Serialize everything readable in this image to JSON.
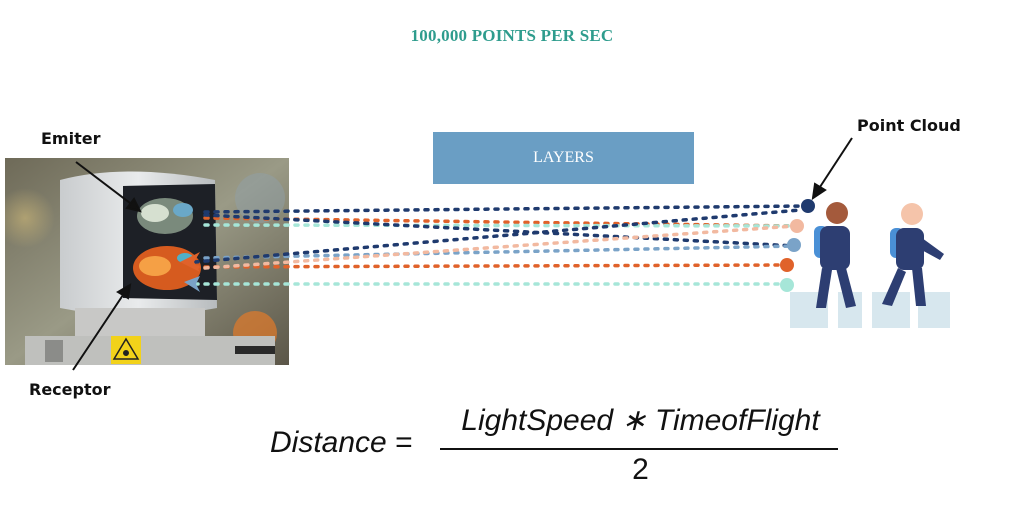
{
  "headline": "100,000 POINTS PER SEC",
  "layers_label": "LAYERS",
  "labels": {
    "emitter": "Emiter",
    "receptor": "Receptor",
    "point_cloud": "Point Cloud"
  },
  "formula": {
    "lhs": "Distance",
    "equals": "=",
    "numerator": "LightSpeed ∗ TimeofFlight",
    "denominator": "2"
  },
  "colors": {
    "headline": "#2e9c8d",
    "layers_box": "#6a9ec4",
    "beam_navy": "#1f3a6e",
    "beam_orange": "#e0622a",
    "beam_peach": "#f2b9a0",
    "beam_steel": "#7aa3c8",
    "beam_mint": "#a6e6d8"
  },
  "icons": [
    "lidar-sensor-photo",
    "pedestrian-icon",
    "pedestrian-icon",
    "crosswalk-icon",
    "arrow-icon"
  ]
}
